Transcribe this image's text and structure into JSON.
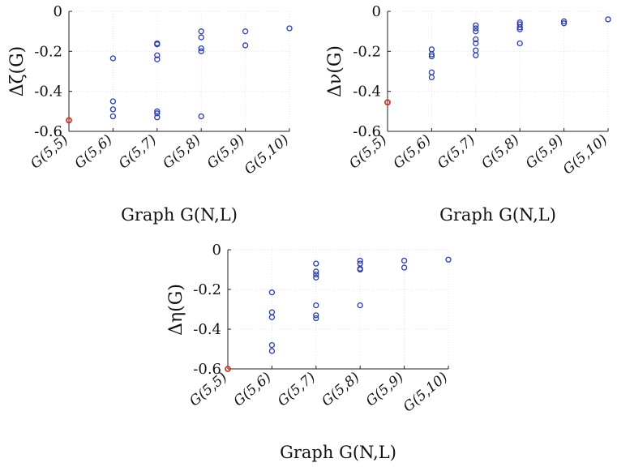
{
  "colors": {
    "points": "#2a3fa8",
    "highlight": "#d1342b",
    "grid": "#e6e6e6",
    "axis": "#222222"
  },
  "chart_data": [
    {
      "type": "scatter",
      "categories": [
        "G(5,5)",
        "G(5,6)",
        "G(5,7)",
        "G(5,8)",
        "G(5,9)",
        "G(5,10)"
      ],
      "xlabel": "Graph G(N,L)",
      "ylabel": "Δζ(G)",
      "ylim": [
        -0.6,
        0
      ],
      "yticks": [
        "0",
        "-0.2",
        "-0.4",
        "-0.6"
      ],
      "grid": true,
      "points": [
        {
          "x": "G(5,5)",
          "y": -0.545,
          "highlight": true
        },
        {
          "x": "G(5,6)",
          "y": -0.235
        },
        {
          "x": "G(5,6)",
          "y": -0.45
        },
        {
          "x": "G(5,6)",
          "y": -0.49
        },
        {
          "x": "G(5,6)",
          "y": -0.525
        },
        {
          "x": "G(5,7)",
          "y": -0.16
        },
        {
          "x": "G(5,7)",
          "y": -0.165
        },
        {
          "x": "G(5,7)",
          "y": -0.22
        },
        {
          "x": "G(5,7)",
          "y": -0.24
        },
        {
          "x": "G(5,7)",
          "y": -0.5
        },
        {
          "x": "G(5,7)",
          "y": -0.51
        },
        {
          "x": "G(5,7)",
          "y": -0.53
        },
        {
          "x": "G(5,8)",
          "y": -0.1
        },
        {
          "x": "G(5,8)",
          "y": -0.13
        },
        {
          "x": "G(5,8)",
          "y": -0.185
        },
        {
          "x": "G(5,8)",
          "y": -0.2
        },
        {
          "x": "G(5,8)",
          "y": -0.525
        },
        {
          "x": "G(5,9)",
          "y": -0.1
        },
        {
          "x": "G(5,9)",
          "y": -0.17
        },
        {
          "x": "G(5,10)",
          "y": -0.085
        }
      ]
    },
    {
      "type": "scatter",
      "categories": [
        "G(5,5)",
        "G(5,6)",
        "G(5,7)",
        "G(5,8)",
        "G(5,9)",
        "G(5,10)"
      ],
      "xlabel": "Graph G(N,L)",
      "ylabel": "Δν(G)",
      "ylim": [
        -0.6,
        0
      ],
      "yticks": [
        "0",
        "-0.2",
        "-0.4",
        "-0.6"
      ],
      "grid": true,
      "points": [
        {
          "x": "G(5,5)",
          "y": -0.455,
          "highlight": true
        },
        {
          "x": "G(5,6)",
          "y": -0.19
        },
        {
          "x": "G(5,6)",
          "y": -0.215
        },
        {
          "x": "G(5,6)",
          "y": -0.225
        },
        {
          "x": "G(5,6)",
          "y": -0.305
        },
        {
          "x": "G(5,6)",
          "y": -0.33
        },
        {
          "x": "G(5,7)",
          "y": -0.07
        },
        {
          "x": "G(5,7)",
          "y": -0.085
        },
        {
          "x": "G(5,7)",
          "y": -0.1
        },
        {
          "x": "G(5,7)",
          "y": -0.14
        },
        {
          "x": "G(5,7)",
          "y": -0.16
        },
        {
          "x": "G(5,7)",
          "y": -0.195
        },
        {
          "x": "G(5,7)",
          "y": -0.22
        },
        {
          "x": "G(5,8)",
          "y": -0.055
        },
        {
          "x": "G(5,8)",
          "y": -0.065
        },
        {
          "x": "G(5,8)",
          "y": -0.08
        },
        {
          "x": "G(5,8)",
          "y": -0.09
        },
        {
          "x": "G(5,8)",
          "y": -0.16
        },
        {
          "x": "G(5,9)",
          "y": -0.05
        },
        {
          "x": "G(5,9)",
          "y": -0.06
        },
        {
          "x": "G(5,10)",
          "y": -0.04
        }
      ]
    },
    {
      "type": "scatter",
      "categories": [
        "G(5,5)",
        "G(5,6)",
        "G(5,7)",
        "G(5,8)",
        "G(5,9)",
        "G(5,10)"
      ],
      "xlabel": "Graph G(N,L)",
      "ylabel": "Δη(G)",
      "ylim": [
        -0.6,
        0
      ],
      "yticks": [
        "0",
        "-0.2",
        "-0.4",
        "-0.6"
      ],
      "grid": true,
      "points": [
        {
          "x": "G(5,5)",
          "y": -0.6,
          "highlight": true
        },
        {
          "x": "G(5,6)",
          "y": -0.215
        },
        {
          "x": "G(5,6)",
          "y": -0.315
        },
        {
          "x": "G(5,6)",
          "y": -0.34
        },
        {
          "x": "G(5,6)",
          "y": -0.48
        },
        {
          "x": "G(5,6)",
          "y": -0.51
        },
        {
          "x": "G(5,7)",
          "y": -0.07
        },
        {
          "x": "G(5,7)",
          "y": -0.11
        },
        {
          "x": "G(5,7)",
          "y": -0.125
        },
        {
          "x": "G(5,7)",
          "y": -0.14
        },
        {
          "x": "G(5,7)",
          "y": -0.28
        },
        {
          "x": "G(5,7)",
          "y": -0.33
        },
        {
          "x": "G(5,7)",
          "y": -0.345
        },
        {
          "x": "G(5,8)",
          "y": -0.055
        },
        {
          "x": "G(5,8)",
          "y": -0.07
        },
        {
          "x": "G(5,8)",
          "y": -0.095
        },
        {
          "x": "G(5,8)",
          "y": -0.1
        },
        {
          "x": "G(5,8)",
          "y": -0.28
        },
        {
          "x": "G(5,9)",
          "y": -0.055
        },
        {
          "x": "G(5,9)",
          "y": -0.09
        },
        {
          "x": "G(5,10)",
          "y": -0.05
        }
      ]
    }
  ]
}
